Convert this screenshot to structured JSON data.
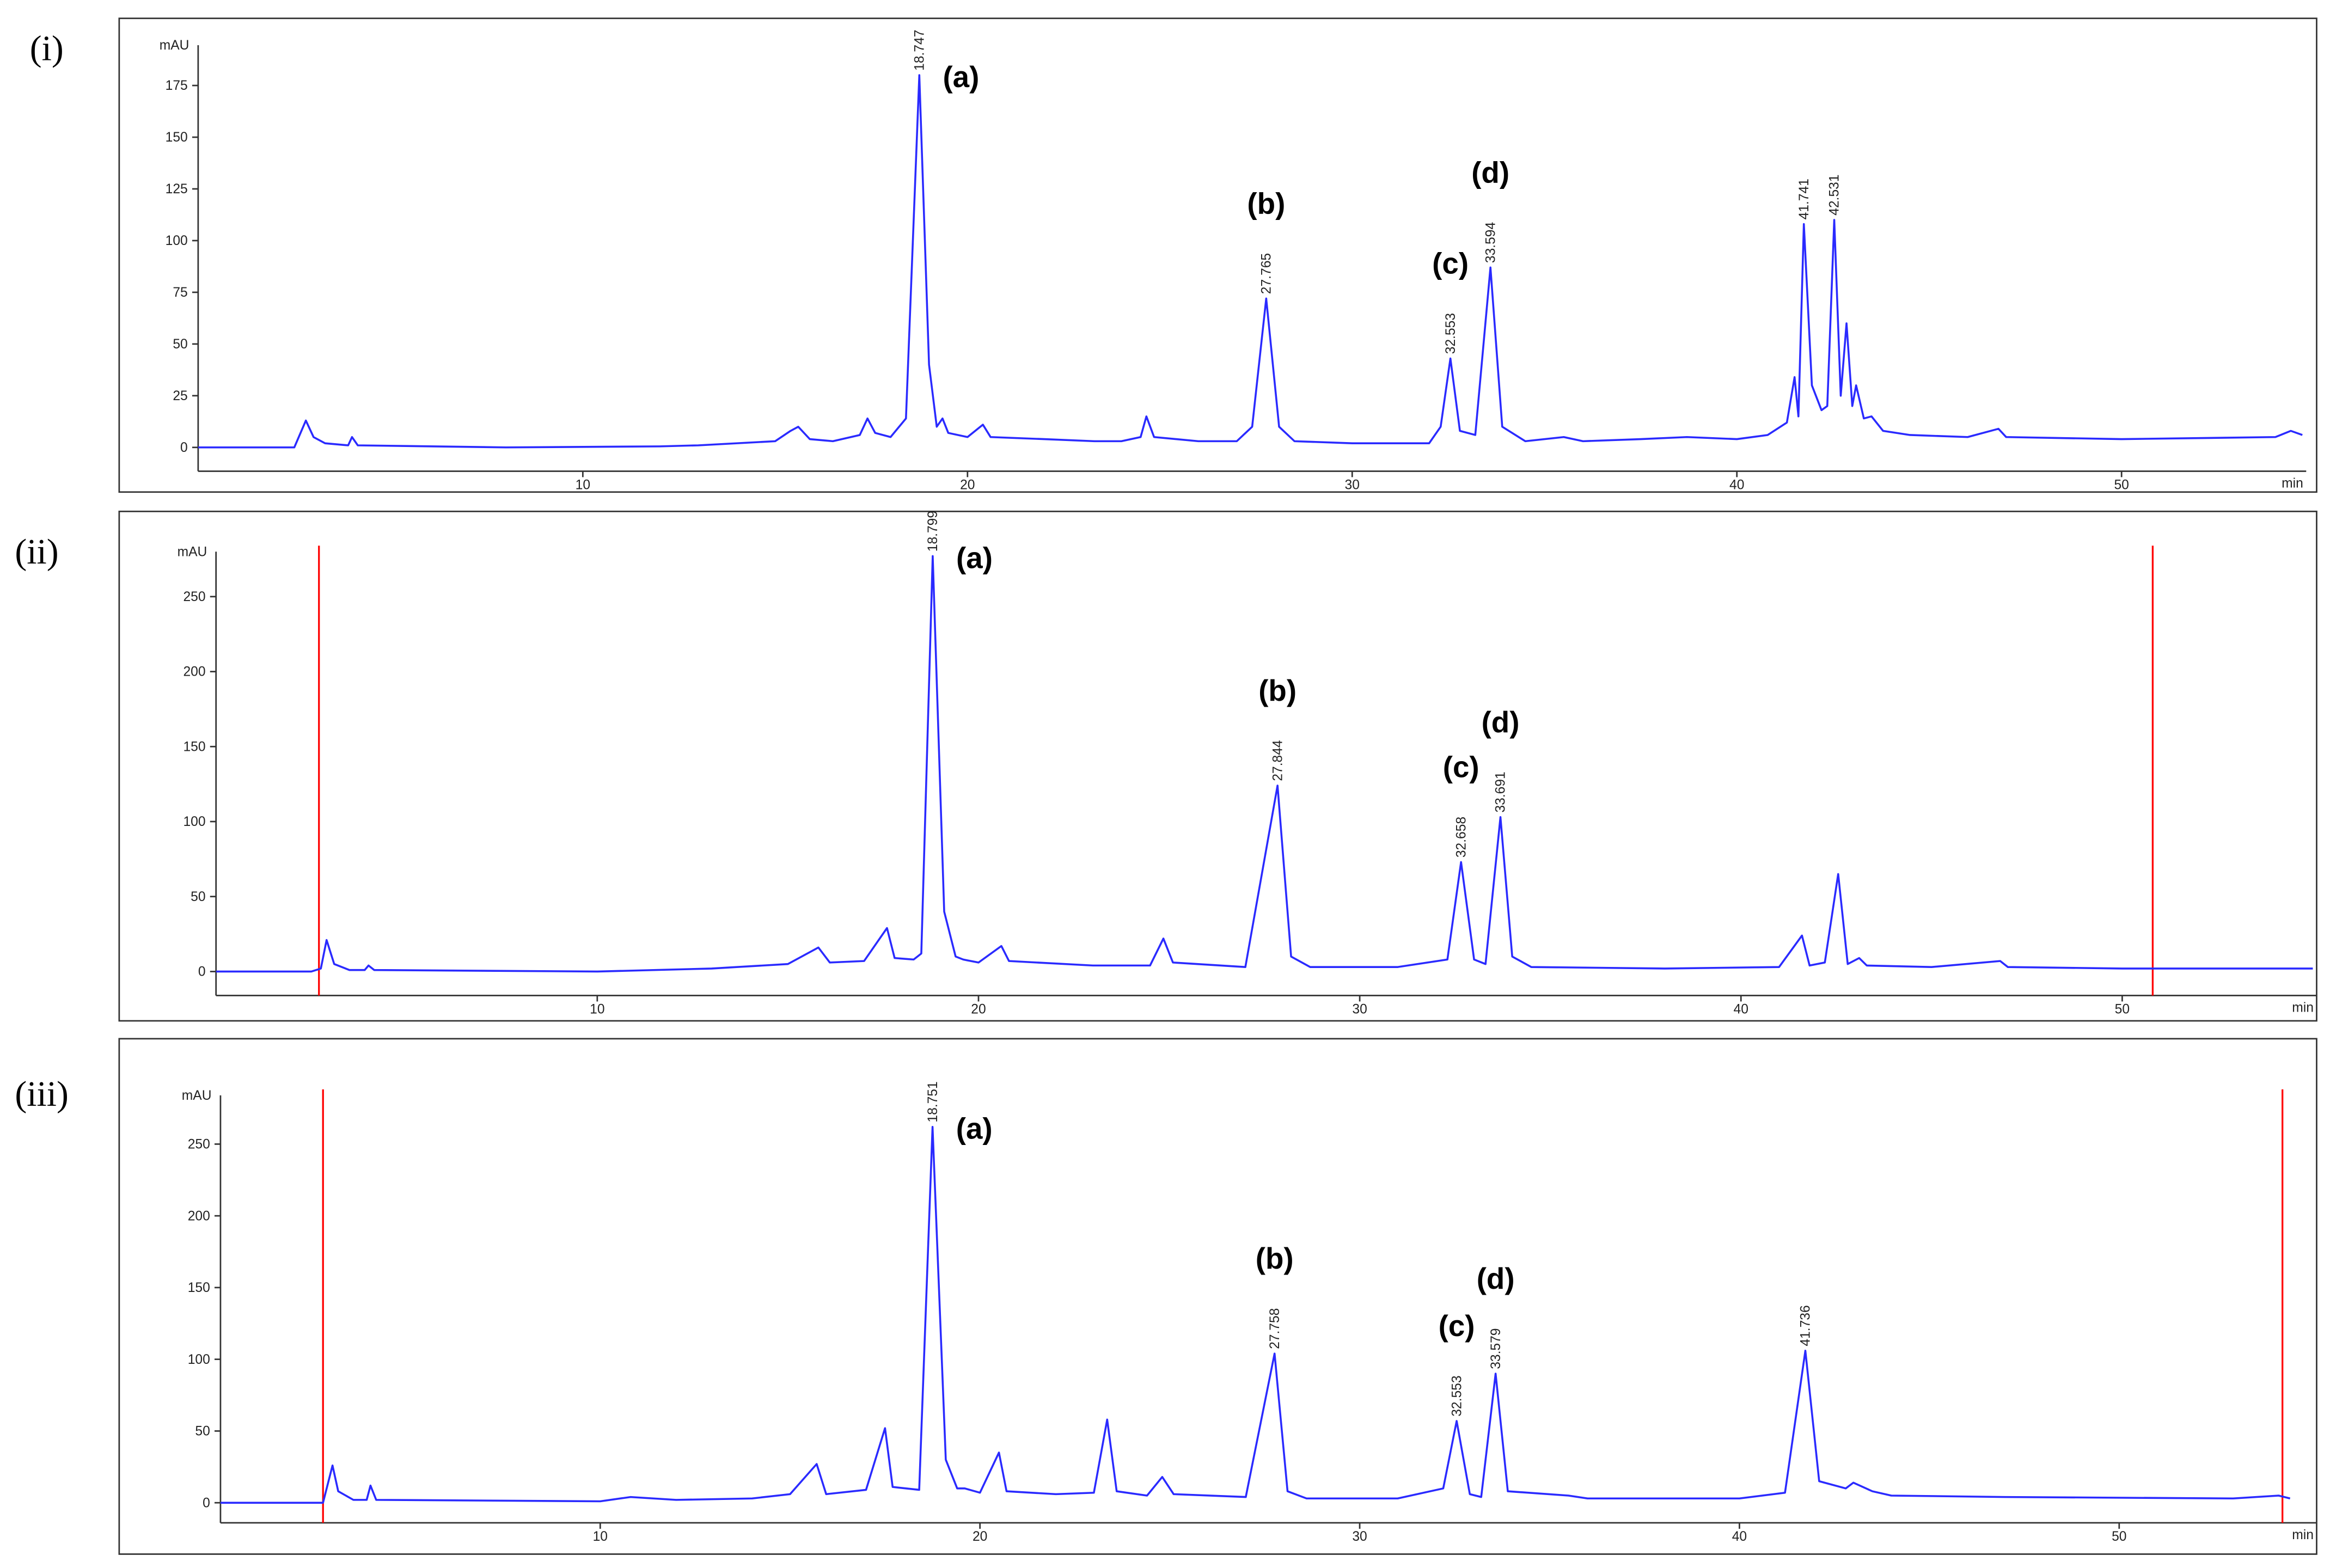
{
  "chart_data": [
    {
      "type": "line",
      "panel_label": "(i)",
      "y_label": "mAU",
      "x_label": "min",
      "color": "#2a2aff",
      "xlim": [
        0,
        54.8
      ],
      "ylim": [
        -11.5,
        194.5
      ],
      "xticks": [
        10,
        20,
        30,
        40,
        50
      ],
      "yticks": [
        0,
        25,
        50,
        75,
        100,
        125,
        150,
        175
      ],
      "x": [
        0,
        2.5,
        2.8,
        3.0,
        3.3,
        3.9,
        4.0,
        4.15,
        8,
        12,
        13,
        15,
        15.4,
        15.6,
        15.9,
        16.5,
        17.2,
        17.4,
        17.6,
        18,
        18.4,
        18.747,
        19.0,
        19.2,
        19.35,
        19.5,
        20,
        20.4,
        20.6,
        22,
        23.3,
        24,
        24.5,
        24.65,
        24.85,
        26,
        27,
        27.4,
        27.765,
        28.1,
        28.5,
        30,
        32,
        32.3,
        32.553,
        32.8,
        33.2,
        33.594,
        33.9,
        34.5,
        35.5,
        36,
        37.5,
        38.7,
        40,
        40.8,
        41.3,
        41.5,
        41.6,
        41.741,
        41.95,
        42.2,
        42.35,
        42.531,
        42.7,
        42.85,
        43.0,
        43.1,
        43.3,
        43.5,
        43.8,
        44.5,
        46,
        46.8,
        47,
        50,
        54,
        54.4,
        54.7
      ],
      "values": [
        0,
        0,
        13,
        5,
        2,
        1,
        5,
        1,
        0,
        0.5,
        1,
        3,
        8,
        10,
        4,
        3,
        6,
        14,
        7,
        5,
        14,
        180,
        40,
        10,
        14,
        7,
        5,
        11,
        5,
        4,
        3,
        3,
        5,
        15,
        5,
        3,
        3,
        10,
        72,
        10,
        3,
        2,
        2,
        10,
        43,
        8,
        6,
        87,
        10,
        3,
        5,
        3,
        4,
        5,
        4,
        6,
        12,
        34,
        15,
        108,
        30,
        18,
        20,
        110,
        25,
        60,
        20,
        30,
        14,
        15,
        8,
        6,
        5,
        9,
        5,
        4,
        5,
        8,
        6
      ],
      "peak_labels": [
        18.747,
        27.765,
        32.553,
        33.594,
        41.741,
        42.531
      ],
      "annotations": [
        "(a)",
        "(b)",
        "(c)",
        "(d)"
      ]
    },
    {
      "type": "line",
      "panel_label": "(ii)",
      "y_label": "mAU",
      "x_label": "min",
      "color": "#2a2aff",
      "xlim": [
        0,
        55.1
      ],
      "ylim": [
        -16,
        280
      ],
      "xticks": [
        10,
        20,
        30,
        40,
        50
      ],
      "yticks": [
        0,
        50,
        100,
        150,
        200,
        250
      ],
      "x": [
        0,
        2.5,
        2.75,
        2.9,
        3.1,
        3.5,
        3.9,
        4.0,
        4.15,
        10,
        13,
        15,
        15.8,
        16.1,
        17,
        17.6,
        17.8,
        18.3,
        18.5,
        18.799,
        19.1,
        19.4,
        19.6,
        20,
        20.6,
        20.8,
        23,
        24.5,
        24.85,
        25.1,
        27,
        27.844,
        28.2,
        28.7,
        31,
        32.3,
        32.658,
        33,
        33.3,
        33.691,
        34,
        34.5,
        38,
        41,
        41.6,
        41.8,
        42.2,
        42.55,
        42.8,
        43.1,
        43.3,
        45,
        46.8,
        47,
        50,
        55
      ],
      "values": [
        0,
        0,
        2,
        21,
        5,
        1,
        1,
        4,
        1,
        0,
        2,
        5,
        16,
        6,
        7,
        29,
        9,
        8,
        12,
        277,
        40,
        10,
        8,
        6,
        17,
        7,
        4,
        4,
        22,
        6,
        3,
        124,
        10,
        3,
        3,
        8,
        73,
        8,
        5,
        103,
        10,
        3,
        2,
        3,
        24,
        4,
        6,
        65,
        5,
        9,
        4,
        3,
        7,
        3,
        2,
        2
      ],
      "peak_labels": [
        18.799,
        27.844,
        32.658,
        33.691
      ],
      "annotations": [
        "(a)",
        "(b)",
        "(c)",
        "(d)"
      ],
      "markers": [
        2.7,
        50.8
      ],
      "marker_color": "#ff0000"
    },
    {
      "type": "line",
      "panel_label": "(iii)",
      "y_label": "mAU",
      "x_label": "min",
      "color": "#2a2aff",
      "xlim": [
        0,
        55.2
      ],
      "ylim": [
        -14,
        284
      ],
      "xticks": [
        10,
        20,
        30,
        40,
        50
      ],
      "yticks": [
        0,
        50,
        100,
        150,
        200,
        250
      ],
      "x": [
        0,
        2.5,
        2.7,
        2.95,
        3.1,
        3.5,
        3.85,
        3.95,
        4.1,
        10,
        10.8,
        12,
        14,
        15,
        15.7,
        15.95,
        17,
        17.5,
        17.7,
        18.4,
        18.751,
        19.1,
        19.4,
        19.6,
        20,
        20.5,
        20.7,
        22,
        23,
        23.35,
        23.6,
        24.4,
        24.8,
        25.1,
        27,
        27.758,
        28.1,
        28.6,
        31,
        32.2,
        32.553,
        32.9,
        33.2,
        33.579,
        33.9,
        35.5,
        36,
        40,
        41.2,
        41.736,
        42.1,
        42.8,
        43,
        43.5,
        44,
        47,
        53,
        54.2,
        54.5
      ],
      "values": [
        0,
        0,
        0,
        26,
        8,
        2,
        2,
        12,
        2,
        1,
        4,
        2,
        3,
        6,
        27,
        6,
        9,
        52,
        11,
        9,
        262,
        30,
        10,
        10,
        7,
        35,
        8,
        6,
        7,
        58,
        8,
        5,
        18,
        6,
        4,
        104,
        8,
        3,
        3,
        10,
        57,
        6,
        4,
        90,
        8,
        5,
        3,
        3,
        7,
        106,
        15,
        10,
        14,
        8,
        5,
        4,
        3,
        5,
        3
      ],
      "peak_labels": [
        18.751,
        27.758,
        32.553,
        33.579,
        41.736
      ],
      "annotations": [
        "(a)",
        "(b)",
        "(c)",
        "(d)"
      ],
      "markers": [
        2.7,
        54.3
      ],
      "marker_color": "#ff0000"
    }
  ]
}
